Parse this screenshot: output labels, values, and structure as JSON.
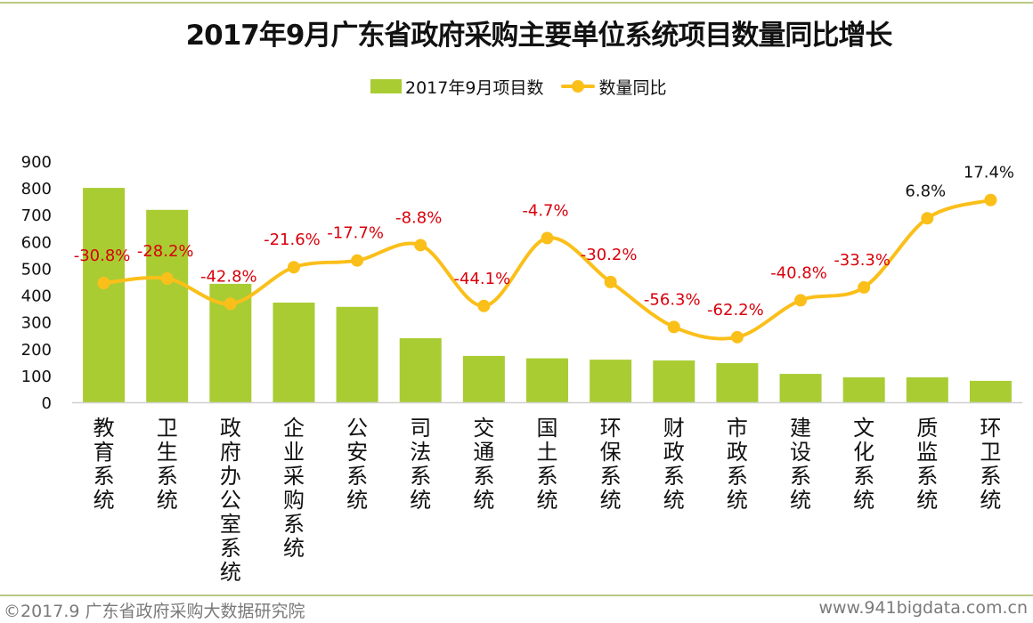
{
  "title": "2017年9月广东省政府采购主要单位系统项目数量同比增长",
  "legend": {
    "bar_label": "2017年9月项目数",
    "line_label": "数量同比"
  },
  "colors": {
    "bar": "#a9cc33",
    "line": "#fbbf1a",
    "negative_label": "#d9000b",
    "positive_label": "#111111",
    "axis": "#d0d0d0",
    "rule": "#b9c985"
  },
  "footer": {
    "left": "©2017.9 广东省政府采购大数据研究院",
    "right": "www.941bigdata.com.cn"
  },
  "chart_data": {
    "type": "bar",
    "title": "2017年9月广东省政府采购主要单位系统项目数量同比增长",
    "xlabel": "",
    "ylabel": "",
    "ylim": [
      0,
      900
    ],
    "yticks": [
      "0",
      "100",
      "200",
      "300",
      "400",
      "500",
      "600",
      "700",
      "800",
      "900"
    ],
    "y2lim": [
      -100,
      40
    ],
    "grid": false,
    "legend_position": "top-center",
    "categories": [
      "教育系统",
      "卫生系统",
      "政府办公室系统",
      "企业采购系统",
      "公安系统",
      "司法系统",
      "交通系统",
      "国土系统",
      "环保系统",
      "财政系统",
      "市政系统",
      "建设系统",
      "文化系统",
      "质监系统",
      "环卫系统"
    ],
    "series": [
      {
        "name": "2017年9月项目数",
        "type": "bar",
        "axis": "primary",
        "values": [
          800,
          718,
          442,
          372,
          356,
          239,
          173,
          164,
          159,
          156,
          146,
          106,
          93,
          93,
          80
        ]
      },
      {
        "name": "数量同比",
        "type": "line",
        "axis": "secondary",
        "unit": "%",
        "values": [
          -30.8,
          -28.2,
          -42.8,
          -21.6,
          -17.7,
          -8.8,
          -44.1,
          -4.7,
          -30.2,
          -56.3,
          -62.2,
          -40.8,
          -33.3,
          6.8,
          17.4
        ],
        "labels": [
          "-30.8%",
          "-28.2%",
          "-42.8%",
          "-21.6%",
          "-17.7%",
          "-8.8%",
          "-44.1%",
          "-4.7%",
          "-30.2%",
          "-56.3%",
          "-62.2%",
          "-40.8%",
          "-33.3%",
          "6.8%",
          "17.4%"
        ]
      }
    ]
  }
}
